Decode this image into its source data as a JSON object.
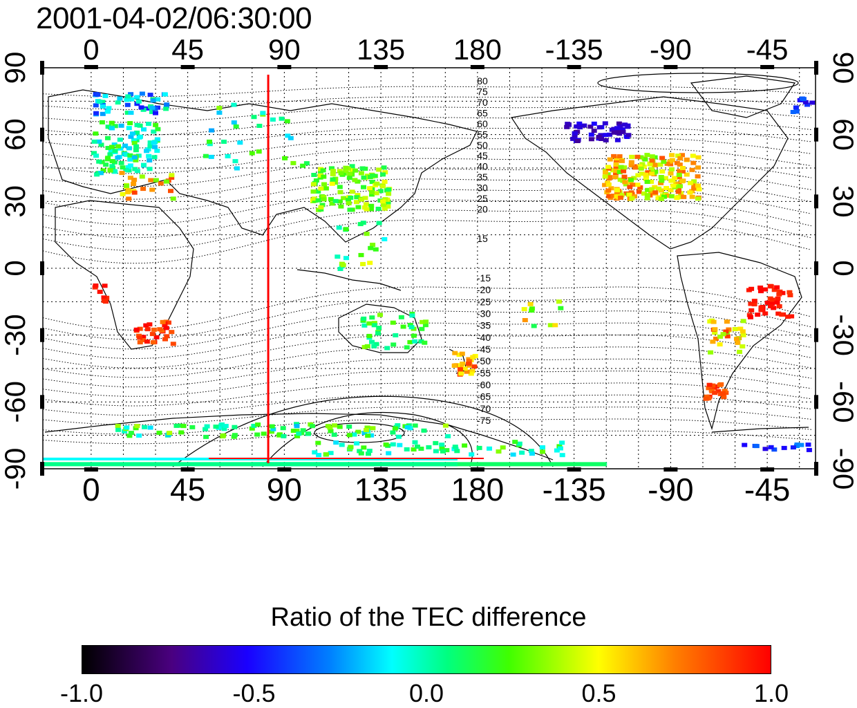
{
  "title": "2001-04-02/06:30:00",
  "map": {
    "lon_ticks_top": [
      "0",
      "45",
      "90",
      "135",
      "180",
      "-135",
      "-90",
      "-45"
    ],
    "lon_ticks_bottom": [
      "0",
      "45",
      "90",
      "135",
      "180",
      "-135",
      "-90",
      "-45"
    ],
    "lat_ticks_left": [
      "90",
      "60",
      "30",
      "0",
      "-30",
      "-60",
      "-90"
    ],
    "lat_ticks_right": [
      "90",
      "60",
      "30",
      "0",
      "-30",
      "-60",
      "-90"
    ],
    "red_line_longitude": 82.5,
    "north_contour_labels": [
      "80",
      "75",
      "70",
      "65",
      "60",
      "55",
      "50",
      "45",
      "40",
      "35",
      "30",
      "25",
      "20",
      "15"
    ],
    "south_contour_labels": [
      "-15",
      "-20",
      "-25",
      "-30",
      "-35",
      "-40",
      "-45",
      "-50",
      "-55",
      "-60",
      "-65",
      "-70",
      "-75"
    ],
    "data_colors": {
      "low": "#1a00ff",
      "neutral": "#00ff80",
      "high": "#ff0000"
    }
  },
  "colorbar": {
    "title": "Ratio of the TEC difference",
    "ticks": [
      "-1.0",
      "-0.5",
      "0.0",
      "0.5",
      "1.0"
    ],
    "range": [
      -1.0,
      1.0
    ]
  }
}
